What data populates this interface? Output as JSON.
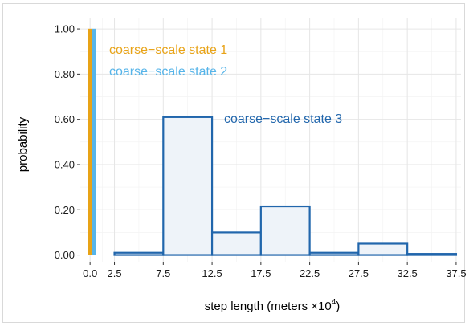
{
  "chart_data": {
    "type": "bar",
    "xlabel": "step length (meters ×",
    "xlabel_exponent": "10",
    "xlabel_power": "4",
    "xlabel_close": ")",
    "ylabel": "probability",
    "xlim": [
      -1,
      38
    ],
    "ylim": [
      -0.03,
      1.05
    ],
    "grid": true,
    "x_ticks": [
      0.0,
      2.5,
      7.5,
      12.5,
      17.5,
      22.5,
      27.5,
      32.5,
      37.5
    ],
    "x_tick_labels": [
      "0.0",
      "2.5",
      "7.5",
      "12.5",
      "17.5",
      "22.5",
      "27.5",
      "32.5",
      "37.5"
    ],
    "y_ticks": [
      0.0,
      0.2,
      0.4,
      0.6,
      0.8,
      1.0
    ],
    "y_tick_labels": [
      "0.00",
      "0.20",
      "0.40",
      "0.60",
      "0.80",
      "1.00"
    ],
    "series": [
      {
        "name": "coarse−scale state 1",
        "color": "#E8A317",
        "bins": [
          {
            "x0": -0.2,
            "x1": 0.2,
            "value": 1.0
          }
        ]
      },
      {
        "name": "coarse−scale state 2",
        "color": "#56B4E9",
        "bins": [
          {
            "x0": 0.2,
            "x1": 0.6,
            "value": 1.0
          }
        ]
      },
      {
        "name": "coarse−scale state 3",
        "color": "#2166AC",
        "fill": "#EEF3F9",
        "bins": [
          {
            "x0": 2.5,
            "x1": 7.5,
            "value": 0.01
          },
          {
            "x0": 7.5,
            "x1": 12.5,
            "value": 0.61
          },
          {
            "x0": 12.5,
            "x1": 17.5,
            "value": 0.1
          },
          {
            "x0": 17.5,
            "x1": 22.5,
            "value": 0.215
          },
          {
            "x0": 22.5,
            "x1": 27.5,
            "value": 0.01
          },
          {
            "x0": 27.5,
            "x1": 32.5,
            "value": 0.05
          },
          {
            "x0": 32.5,
            "x1": 37.5,
            "value": 0.005
          }
        ]
      }
    ]
  }
}
